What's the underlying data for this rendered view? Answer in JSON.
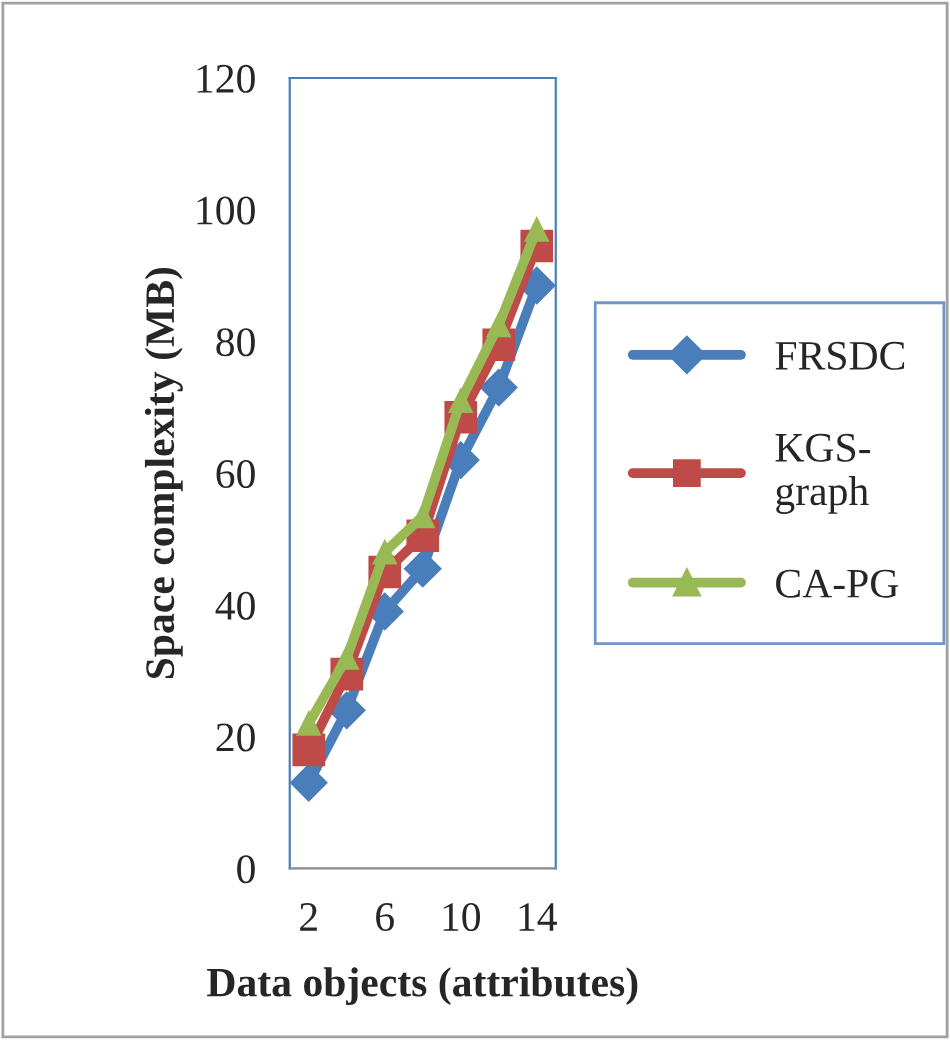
{
  "chart_data": {
    "type": "line",
    "xlabel": "Data objects (attributes)",
    "ylabel": "Space complexity (MB)",
    "categories": [
      "2",
      null,
      "6",
      null,
      "10",
      null,
      "14"
    ],
    "series": [
      {
        "name": "FRSDC",
        "color": "#4a7ebb",
        "marker": "diamond",
        "values": [
          13,
          24,
          39,
          45.5,
          62,
          73,
          88.5
        ]
      },
      {
        "name": "KGS-\ngraph",
        "color": "#be4b48",
        "marker": "square",
        "values": [
          18,
          29.5,
          45,
          50.5,
          68.5,
          79.5,
          94.5
        ]
      },
      {
        "name": "CA-PG",
        "color": "#98b954",
        "marker": "triangle",
        "values": [
          22,
          32,
          48,
          53.5,
          71,
          82.5,
          97
        ]
      }
    ],
    "ylim": [
      0,
      120
    ],
    "yticks": [
      0,
      20,
      40,
      60,
      80,
      100,
      120
    ],
    "grid": false,
    "legend": "right",
    "line_style": "solid"
  }
}
